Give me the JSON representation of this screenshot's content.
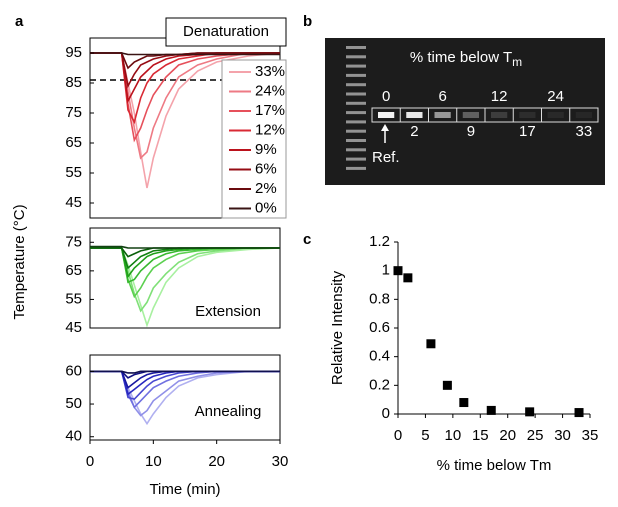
{
  "chart_data": [
    {
      "type": "line",
      "panel": "a",
      "label": "Denaturation",
      "legend": "right",
      "x": [
        0,
        5,
        6,
        7,
        8,
        9,
        10,
        12,
        14,
        17,
        20,
        25,
        30
      ],
      "xlim": [
        0,
        30
      ],
      "ylim": [
        40,
        100
      ],
      "yticks": [
        45,
        55,
        65,
        75,
        85,
        95
      ],
      "hline": 86,
      "series": [
        {
          "name": "33%",
          "color": "#f4a3ab",
          "values": [
            95,
            95,
            85,
            75,
            62,
            50,
            60,
            74,
            83,
            89,
            92,
            94,
            95
          ]
        },
        {
          "name": "24%",
          "color": "#ee7a84",
          "values": [
            95,
            95,
            82,
            70,
            60,
            62,
            70,
            80,
            87,
            91,
            93,
            95,
            95
          ]
        },
        {
          "name": "17%",
          "color": "#e6505b",
          "values": [
            95,
            95,
            78,
            66,
            70,
            76,
            81,
            87,
            91,
            93,
            94,
            95,
            95
          ]
        },
        {
          "name": "12%",
          "color": "#d92a34",
          "values": [
            95,
            95,
            76,
            72,
            80,
            85,
            88,
            91,
            93,
            94,
            95,
            95,
            95
          ]
        },
        {
          "name": "9%",
          "color": "#bb121c",
          "values": [
            95,
            95,
            79,
            83,
            87,
            89,
            91,
            93,
            94,
            94.5,
            95,
            95,
            95
          ]
        },
        {
          "name": "6%",
          "color": "#960c14",
          "values": [
            95,
            95,
            84,
            88,
            91,
            92,
            93,
            94,
            94.5,
            95,
            95,
            95,
            95
          ]
        },
        {
          "name": "2%",
          "color": "#6a0a0e",
          "values": [
            95,
            95,
            90,
            92,
            93,
            94,
            94,
            94.5,
            94.5,
            95,
            95,
            95,
            95
          ]
        },
        {
          "name": "0%",
          "color": "#3a1414",
          "values": [
            95,
            95,
            94.5,
            94.5,
            94.5,
            94.5,
            94.5,
            94.5,
            94.5,
            94.5,
            94.5,
            94.5,
            94.5
          ]
        }
      ]
    },
    {
      "type": "line",
      "label": "Extension",
      "ylabel": "Temperature (°C)",
      "x": [
        0,
        5,
        6,
        7,
        8,
        9,
        10,
        12,
        14,
        17,
        20,
        25,
        30
      ],
      "xlim": [
        0,
        30
      ],
      "ylim": [
        45,
        80
      ],
      "yticks": [
        45,
        55,
        65,
        75
      ],
      "series": [
        {
          "color": "#a8f0a0",
          "values": [
            73,
            73,
            67,
            60,
            53,
            46,
            52,
            61,
            66,
            70,
            71.5,
            72.5,
            73
          ]
        },
        {
          "color": "#80e078",
          "values": [
            73,
            73,
            65,
            57,
            51,
            54,
            59,
            64,
            68,
            71,
            72,
            73,
            73
          ]
        },
        {
          "color": "#5cd050",
          "values": [
            73,
            73,
            62,
            56,
            59,
            63,
            66,
            69,
            71,
            72,
            72.5,
            73,
            73
          ]
        },
        {
          "color": "#38b830",
          "values": [
            73,
            73,
            61,
            62,
            65,
            67,
            69,
            71,
            72,
            72.5,
            73,
            73,
            73
          ]
        },
        {
          "color": "#20a018",
          "values": [
            73,
            73,
            63,
            66,
            68,
            70,
            71,
            72,
            72.5,
            73,
            73,
            73,
            73
          ]
        },
        {
          "color": "#108010",
          "values": [
            73,
            73,
            66,
            68,
            70,
            71,
            72,
            72.5,
            73,
            73,
            73,
            73,
            73
          ]
        },
        {
          "color": "#0a600a",
          "values": [
            73,
            73,
            70,
            71,
            72,
            72.5,
            73,
            73,
            73,
            73,
            73,
            73,
            73
          ]
        },
        {
          "color": "#124012",
          "values": [
            73.5,
            73.5,
            73,
            73,
            73,
            73,
            73,
            73,
            73,
            73,
            73,
            73,
            73
          ]
        }
      ]
    },
    {
      "type": "line",
      "label": "Annealing",
      "xlabel": "Time (min)",
      "x": [
        0,
        5,
        6,
        7,
        8,
        9,
        10,
        12,
        14,
        17,
        20,
        25,
        30
      ],
      "xlim": [
        0,
        30
      ],
      "xticks": [
        0,
        10,
        20,
        30
      ],
      "ylim": [
        39,
        65
      ],
      "yticks": [
        40,
        50,
        60
      ],
      "series": [
        {
          "color": "#b0b0f0",
          "values": [
            60,
            60,
            55,
            51,
            47,
            44,
            47,
            52,
            55.5,
            58,
            59,
            60,
            60
          ]
        },
        {
          "color": "#9090e8",
          "values": [
            60,
            60,
            54,
            49,
            46.5,
            48,
            51,
            54,
            57,
            58.5,
            59.5,
            60,
            60
          ]
        },
        {
          "color": "#7070e0",
          "values": [
            60,
            60,
            53,
            49,
            51,
            53,
            55,
            57,
            58.5,
            59.5,
            60,
            60,
            60
          ]
        },
        {
          "color": "#4848d0",
          "values": [
            60,
            60,
            52,
            51.5,
            53.5,
            55.5,
            57,
            58.5,
            59.5,
            60,
            60,
            60,
            60
          ]
        },
        {
          "color": "#2828c0",
          "values": [
            60,
            60,
            53,
            54.5,
            56,
            57.5,
            58.5,
            59.5,
            60,
            60,
            60,
            60,
            60
          ]
        },
        {
          "color": "#1818a0",
          "values": [
            60,
            60,
            55,
            56.5,
            58,
            59,
            59.5,
            60,
            60,
            60,
            60,
            60,
            60
          ]
        },
        {
          "color": "#101080",
          "values": [
            60,
            60,
            58,
            59,
            59.5,
            60,
            60,
            60,
            60,
            60,
            60,
            60,
            60
          ]
        },
        {
          "color": "#101050",
          "values": [
            60,
            60,
            59.5,
            59.5,
            60,
            60,
            60,
            60,
            60,
            60,
            60,
            60,
            60
          ]
        }
      ]
    },
    {
      "type": "gel",
      "panel": "b",
      "title": {
        "text": "% time below T",
        "sub": "m"
      },
      "top_labels": [
        "0",
        "6",
        "12",
        "24"
      ],
      "bottom_labels": [
        "2",
        "9",
        "17",
        "33"
      ],
      "annotation": "Ref."
    },
    {
      "type": "scatter",
      "panel": "c",
      "xlabel": "% time below Tm",
      "ylabel": "Relative Intensity",
      "color": "#000000",
      "x": [
        0,
        1.8,
        6,
        9,
        12,
        17,
        24,
        33
      ],
      "values": [
        1,
        0.95,
        0.49,
        0.2,
        0.08,
        0.025,
        0.015,
        0.01
      ],
      "xlim": [
        0,
        35
      ],
      "xticks": [
        0,
        5,
        10,
        15,
        20,
        25,
        30,
        35
      ],
      "ylim": [
        0,
        1.2
      ],
      "yticks": [
        0,
        0.2,
        0.4,
        0.6,
        0.8,
        1,
        1.2
      ]
    }
  ]
}
